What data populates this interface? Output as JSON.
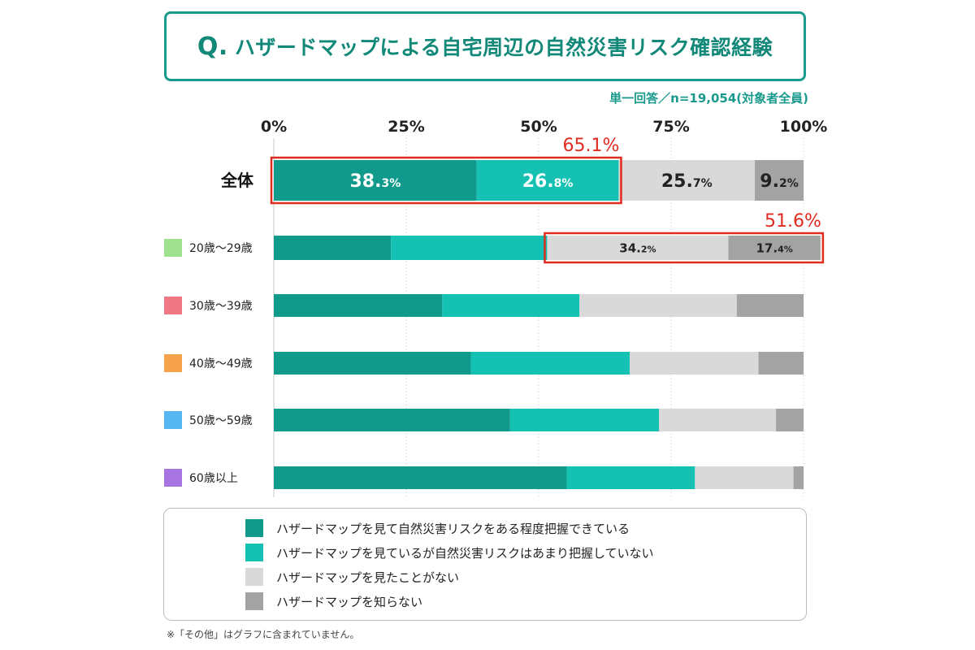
{
  "title": {
    "q": "Q.",
    "text": "ハザードマップによる自宅周辺の自然災害リスク確認経験"
  },
  "subnote": "単一回答／n=19,054(対象者全員)",
  "footnote": "※「その他」はグラフに含まれていません。",
  "colors": {
    "c1": "#0f9a8b",
    "c2": "#14c1b2",
    "c3": "#d9d9d9",
    "c4": "#a3a3a3",
    "highlight": "#e02b20",
    "age_20s": "#9ee08e",
    "age_30s": "#f07784",
    "age_40s": "#f5a24a",
    "age_50s": "#55b6f2",
    "age_60s": "#a874e0"
  },
  "legend": [
    {
      "label": "ハザードマップを見て自然災害リスクをある程度把握できている",
      "color": "#0f9a8b"
    },
    {
      "label": "ハザードマップを見ているが自然災害リスクはあまり把握していない",
      "color": "#14c1b2"
    },
    {
      "label": "ハザードマップを見たことがない",
      "color": "#d9d9d9"
    },
    {
      "label": "ハザードマップを知らない",
      "color": "#a3a3a3"
    }
  ],
  "chart_data": {
    "type": "bar",
    "orientation": "horizontal",
    "stacked": true,
    "x_ticks": [
      "0%",
      "25%",
      "50%",
      "75%",
      "100%"
    ],
    "xlim": [
      0,
      100
    ],
    "categories": [
      "全体",
      "20歳〜29歳",
      "30歳〜39歳",
      "40歳〜49歳",
      "50歳〜59歳",
      "60歳以上"
    ],
    "series": [
      {
        "name": "ハザードマップを見て自然災害リスクをある程度把握できている",
        "values": [
          38.3,
          22.1,
          31.8,
          37.2,
          44.6,
          55.3
        ]
      },
      {
        "name": "ハザードマップを見ているが自然災害リスクはあまり把握していない",
        "values": [
          26.8,
          29.5,
          25.9,
          30.0,
          28.1,
          24.2
        ]
      },
      {
        "name": "ハザードマップを見たことがない",
        "values": [
          25.7,
          34.2,
          29.7,
          24.3,
          22.1,
          18.6
        ]
      },
      {
        "name": "ハザードマップを知らない",
        "values": [
          9.2,
          17.4,
          12.6,
          8.5,
          5.2,
          1.9
        ]
      }
    ],
    "bar_labels": [
      [
        {
          "big": "38.",
          "small": "3%"
        },
        {
          "big": "26.",
          "small": "8%"
        },
        {
          "big": "25.",
          "small": "7%"
        },
        {
          "big": "9.",
          "small": "2%"
        }
      ],
      [
        null,
        null,
        {
          "big": "34.",
          "small": "2%"
        },
        {
          "big": "17.",
          "small": "4%"
        }
      ],
      [
        null,
        null,
        null,
        null
      ],
      [
        null,
        null,
        null,
        null
      ],
      [
        null,
        null,
        null,
        null
      ],
      [
        null,
        null,
        null,
        null
      ]
    ],
    "highlights": [
      {
        "row": 0,
        "from_series": 0,
        "to_series": 1,
        "label": "65.1%"
      },
      {
        "row": 1,
        "from_series": 2,
        "to_series": 3,
        "label": "51.6%"
      }
    ]
  }
}
